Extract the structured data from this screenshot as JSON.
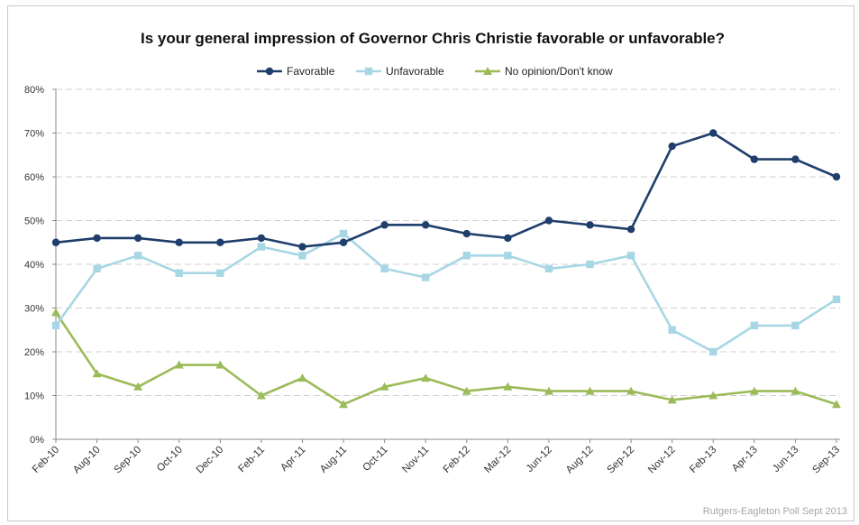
{
  "chart_data": {
    "type": "line",
    "title": "Is your general impression of Governor Chris Christie favorable or unfavorable?",
    "categories": [
      "Feb-10",
      "Aug-10",
      "Sep-10",
      "Oct-10",
      "Dec-10",
      "Feb-11",
      "Apr-11",
      "Aug-11",
      "Oct-11",
      "Nov-11",
      "Feb-12",
      "Mar-12",
      "Jun-12",
      "Aug-12",
      "Sep-12",
      "Nov-12",
      "Feb-13",
      "Apr-13",
      "Jun-13",
      "Sep-13"
    ],
    "y_tick_labels": [
      "0%",
      "10%",
      "20%",
      "30%",
      "40%",
      "50%",
      "60%",
      "70%",
      "80%"
    ],
    "ylim": [
      0,
      80
    ],
    "grid": true,
    "legend_position": "top",
    "series": [
      {
        "name": "Favorable",
        "color": "#1f3e6b",
        "marker": "circle",
        "values": [
          45,
          46,
          46,
          45,
          45,
          46,
          44,
          45,
          49,
          49,
          47,
          46,
          50,
          49,
          48,
          67,
          70,
          64,
          64,
          60
        ]
      },
      {
        "name": "Unfavorable",
        "color": "#a7d6e4",
        "marker": "square",
        "values": [
          26,
          39,
          42,
          38,
          38,
          44,
          42,
          47,
          39,
          37,
          42,
          42,
          39,
          40,
          42,
          25,
          20,
          26,
          26,
          32
        ]
      },
      {
        "name": "No opinion/Don't know",
        "color": "#9bbb59",
        "marker": "triangle",
        "values": [
          29,
          15,
          12,
          17,
          17,
          10,
          14,
          8,
          12,
          14,
          11,
          12,
          11,
          11,
          11,
          9,
          10,
          11,
          11,
          8
        ]
      }
    ],
    "source": "Rutgers-Eagleton Poll Sept 2013"
  }
}
